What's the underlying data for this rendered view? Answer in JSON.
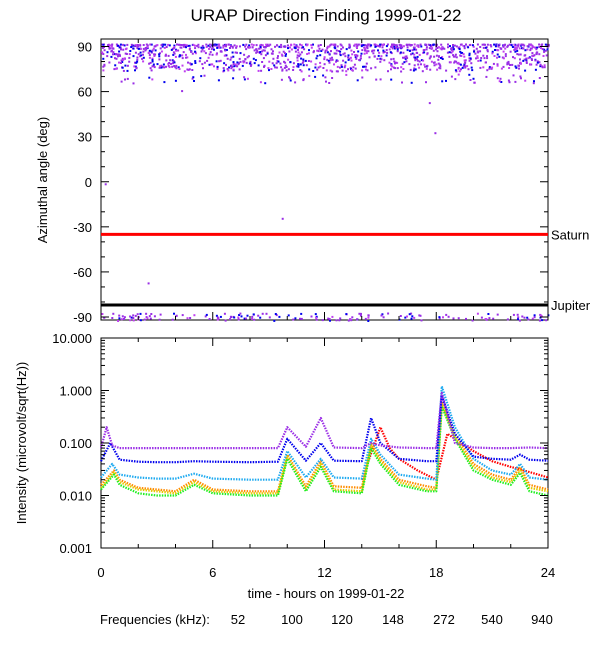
{
  "chart_data": [
    {
      "type": "scatter",
      "title": "URAP Direction Finding  1999-01-22",
      "ylabel": "Azimuthal angle (deg)",
      "xlim": [
        0,
        24
      ],
      "ylim": [
        -92,
        95
      ],
      "y_ticks": [
        "90",
        "60",
        "30",
        "0",
        "-30",
        "-60",
        "-90"
      ],
      "grid": false,
      "reference_lines": [
        {
          "name": "Saturn",
          "y": -35,
          "color": "#ff0000"
        },
        {
          "name": "Jupiter",
          "y": -82,
          "color": "#000000"
        }
      ],
      "scatter_color": "#9a2ee6",
      "scatter_note": "dense band of points between 75 and 92 deg across 0-24 h; sparse points near -88 to -92 deg",
      "outliers": [
        {
          "x": 0.2,
          "y": -1
        },
        {
          "x": 2.5,
          "y": -67
        },
        {
          "x": 4.3,
          "y": 61
        },
        {
          "x": 9.7,
          "y": -24
        },
        {
          "x": 17.6,
          "y": 53
        },
        {
          "x": 17.9,
          "y": 33
        }
      ]
    },
    {
      "type": "line",
      "ylabel": "Intensity (microvolt/sqrt(Hz))",
      "xlabel": "time - hours on 1999-01-22",
      "xlim": [
        0,
        24
      ],
      "ylim": [
        0.001,
        10
      ],
      "yscale": "log",
      "x_ticks": [
        "0",
        "6",
        "12",
        "18",
        "24"
      ],
      "y_ticks": [
        "10.000",
        "1.000",
        "0.100",
        "0.010",
        "0.001"
      ],
      "grid": false,
      "legend_label": "Frequencies (kHz):",
      "series": [
        {
          "name": "52",
          "color": "#ff0000",
          "x": [
            14,
            15,
            15.5,
            16,
            17,
            18,
            18.6,
            19,
            20,
            21,
            22,
            23,
            24
          ],
          "y": [
            0.02,
            0.2,
            0.08,
            0.05,
            0.03,
            0.02,
            0.15,
            0.12,
            0.07,
            0.045,
            0.035,
            0.028,
            0.022
          ]
        },
        {
          "name": "100",
          "color": "#ff8c00",
          "x": [
            0,
            0.7,
            1,
            2,
            3,
            4,
            5,
            6,
            8,
            9.5,
            10,
            11,
            11.8,
            12.5,
            14,
            14.5,
            15,
            16,
            17.5,
            18,
            18.3,
            19,
            20,
            21,
            22,
            22.5,
            23,
            24
          ],
          "y": [
            0.016,
            0.03,
            0.02,
            0.014,
            0.013,
            0.012,
            0.02,
            0.013,
            0.012,
            0.012,
            0.06,
            0.015,
            0.045,
            0.015,
            0.014,
            0.1,
            0.05,
            0.02,
            0.015,
            0.014,
            0.6,
            0.15,
            0.04,
            0.025,
            0.02,
            0.035,
            0.016,
            0.013
          ]
        },
        {
          "name": "120",
          "color": "#e6c800",
          "x": [
            0,
            0.7,
            1,
            2,
            3,
            4,
            5,
            6,
            8,
            9.5,
            10,
            11,
            11.8,
            12.5,
            14,
            14.5,
            15,
            16,
            17.5,
            18,
            18.3,
            19,
            20,
            21,
            22,
            22.5,
            23,
            24
          ],
          "y": [
            0.014,
            0.028,
            0.018,
            0.013,
            0.012,
            0.011,
            0.018,
            0.012,
            0.011,
            0.011,
            0.055,
            0.013,
            0.04,
            0.013,
            0.012,
            0.09,
            0.045,
            0.018,
            0.013,
            0.013,
            0.55,
            0.13,
            0.035,
            0.022,
            0.018,
            0.03,
            0.014,
            0.012
          ]
        },
        {
          "name": "148",
          "color": "#22ee22",
          "x": [
            0,
            0.7,
            1,
            2,
            3,
            4,
            5,
            6,
            8,
            9.5,
            10,
            11,
            11.8,
            12.5,
            14,
            14.5,
            15,
            16,
            17.5,
            18,
            18.3,
            19,
            20,
            21,
            22,
            22.5,
            23,
            24
          ],
          "y": [
            0.013,
            0.025,
            0.016,
            0.011,
            0.01,
            0.01,
            0.016,
            0.011,
            0.01,
            0.01,
            0.05,
            0.012,
            0.035,
            0.012,
            0.011,
            0.08,
            0.04,
            0.016,
            0.012,
            0.012,
            0.5,
            0.12,
            0.03,
            0.02,
            0.016,
            0.027,
            0.012,
            0.01
          ]
        },
        {
          "name": "272",
          "color": "#1eaaf0",
          "x": [
            0,
            0.6,
            1,
            2,
            3,
            4,
            5,
            6,
            8,
            9.5,
            10,
            11,
            11.8,
            12.5,
            14,
            14.5,
            15,
            16,
            17.5,
            18,
            18.3,
            19,
            20,
            21,
            22,
            22.5,
            23,
            24
          ],
          "y": [
            0.022,
            0.04,
            0.025,
            0.022,
            0.021,
            0.021,
            0.026,
            0.021,
            0.02,
            0.02,
            0.07,
            0.022,
            0.05,
            0.022,
            0.021,
            0.12,
            0.06,
            0.025,
            0.021,
            0.02,
            1.2,
            0.2,
            0.05,
            0.03,
            0.025,
            0.04,
            0.022,
            0.02
          ]
        },
        {
          "name": "540",
          "color": "#0000ee",
          "x": [
            0,
            0.5,
            1,
            2,
            3,
            4,
            5,
            6,
            8,
            9.5,
            10,
            11,
            11.8,
            12.5,
            14,
            14.5,
            15,
            16,
            17.5,
            18,
            18.3,
            19,
            20,
            21,
            22,
            22.5,
            23,
            24
          ],
          "y": [
            0.045,
            0.1,
            0.048,
            0.044,
            0.043,
            0.043,
            0.045,
            0.044,
            0.043,
            0.044,
            0.12,
            0.046,
            0.1,
            0.046,
            0.045,
            0.3,
            0.1,
            0.05,
            0.045,
            0.045,
            0.8,
            0.15,
            0.055,
            0.05,
            0.048,
            0.06,
            0.048,
            0.046
          ]
        },
        {
          "name": "940",
          "color": "#9a2ee6",
          "x": [
            0,
            0.3,
            0.6,
            1,
            2,
            3,
            4,
            5,
            6,
            8,
            9.5,
            10,
            11,
            11.8,
            12.5,
            14,
            14.5,
            15,
            16,
            17.5,
            18,
            18.3,
            19,
            20,
            21,
            22,
            23,
            24
          ],
          "y": [
            0.08,
            0.2,
            0.09,
            0.08,
            0.08,
            0.08,
            0.08,
            0.08,
            0.08,
            0.08,
            0.08,
            0.2,
            0.085,
            0.3,
            0.082,
            0.08,
            0.1,
            0.09,
            0.082,
            0.08,
            0.08,
            0.9,
            0.1,
            0.082,
            0.08,
            0.08,
            0.082,
            0.08
          ]
        }
      ]
    }
  ]
}
